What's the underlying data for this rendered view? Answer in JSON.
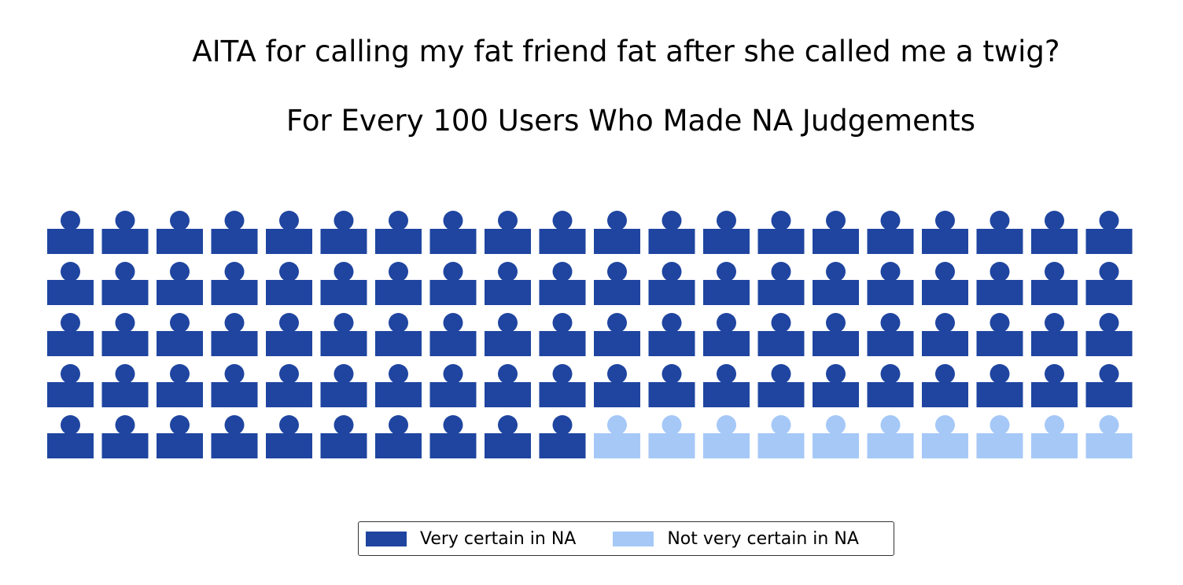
{
  "chart_data": {
    "type": "waffle",
    "title": "AITA for calling my fat friend fat after she called me a twig?",
    "subtitle": "For Every 100 Users Who Made NA Judgements",
    "rows": 5,
    "columns": 20,
    "total": 100,
    "series": [
      {
        "name": "Very certain in NA",
        "value": 90,
        "color": "#1f45a0"
      },
      {
        "name": "Not very certain in NA",
        "value": 10,
        "color": "#a5c8f7"
      }
    ],
    "icon": "person-icon",
    "legend_position": "bottom-center"
  }
}
